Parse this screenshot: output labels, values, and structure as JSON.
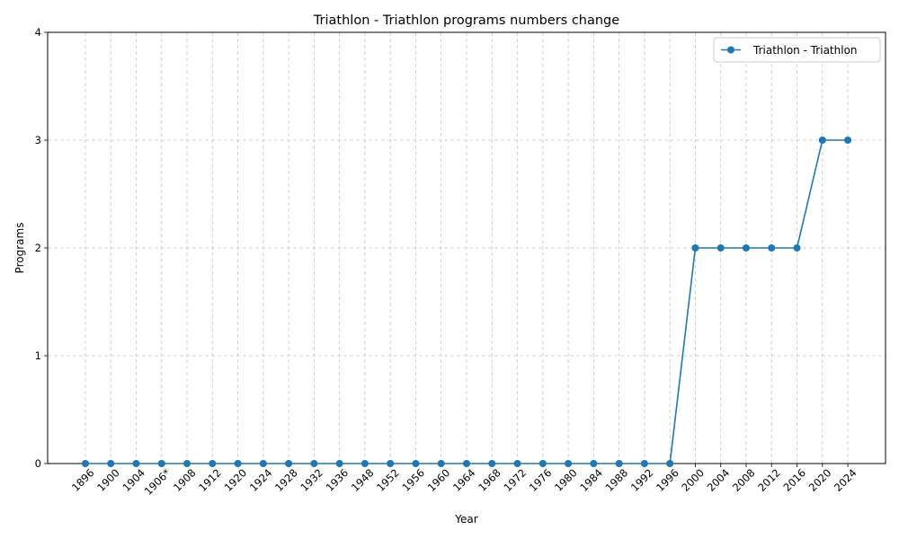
{
  "chart_data": {
    "type": "line",
    "title": "Triathlon - Triathlon programs numbers change",
    "xlabel": "Year",
    "ylabel": "Programs",
    "categories": [
      "1896",
      "1900",
      "1904",
      "1906*",
      "1908",
      "1912",
      "1920",
      "1924",
      "1928",
      "1932",
      "1936",
      "1948",
      "1952",
      "1956",
      "1960",
      "1964",
      "1968",
      "1972",
      "1976",
      "1980",
      "1984",
      "1988",
      "1992",
      "1996",
      "2000",
      "2004",
      "2008",
      "2012",
      "2016",
      "2020",
      "2024"
    ],
    "series": [
      {
        "name": "Triathlon - Triathlon",
        "color": "#1f77b4",
        "marker": "circle",
        "values": [
          0,
          0,
          0,
          0,
          0,
          0,
          0,
          0,
          0,
          0,
          0,
          0,
          0,
          0,
          0,
          0,
          0,
          0,
          0,
          0,
          0,
          0,
          0,
          0,
          2,
          2,
          2,
          2,
          2,
          3,
          3
        ]
      }
    ],
    "ylim": [
      0,
      4
    ],
    "yticks": [
      "0",
      "1",
      "2",
      "3",
      "4"
    ],
    "grid": true,
    "grid_style": "dashed",
    "legend_position": "top-right"
  }
}
